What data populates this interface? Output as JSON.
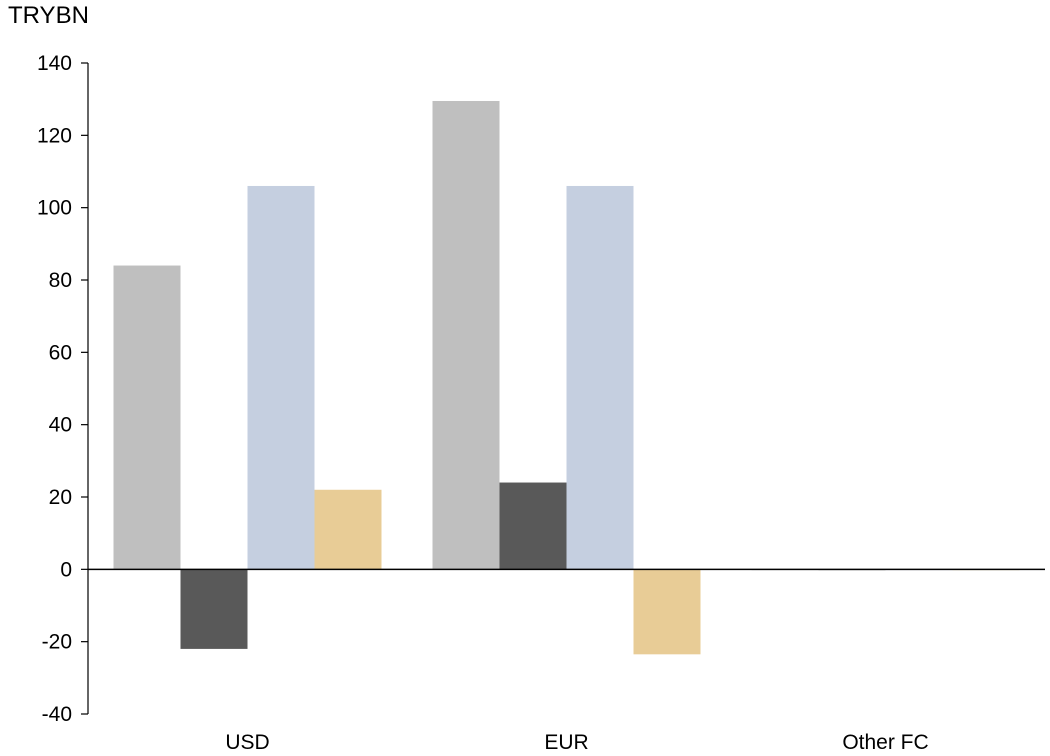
{
  "chart_data": {
    "type": "bar",
    "unit_label": "TRYBN",
    "categories": [
      "USD",
      "EUR",
      "Other FC"
    ],
    "series": [
      {
        "values": [
          84,
          129.5,
          0
        ],
        "color": "#bfbfbf"
      },
      {
        "values": [
          -22,
          24,
          0
        ],
        "color": "#595959"
      },
      {
        "values": [
          106,
          106,
          0
        ],
        "color": "#c5cfe0"
      },
      {
        "values": [
          22,
          -23.5,
          0
        ],
        "color": "#e8cc96"
      }
    ],
    "ylim": [
      -40,
      140
    ],
    "yticks": [
      "-40",
      "-20",
      "0",
      "20",
      "40",
      "60",
      "80",
      "100",
      "120",
      "140"
    ],
    "legend": "none",
    "grid": false
  }
}
